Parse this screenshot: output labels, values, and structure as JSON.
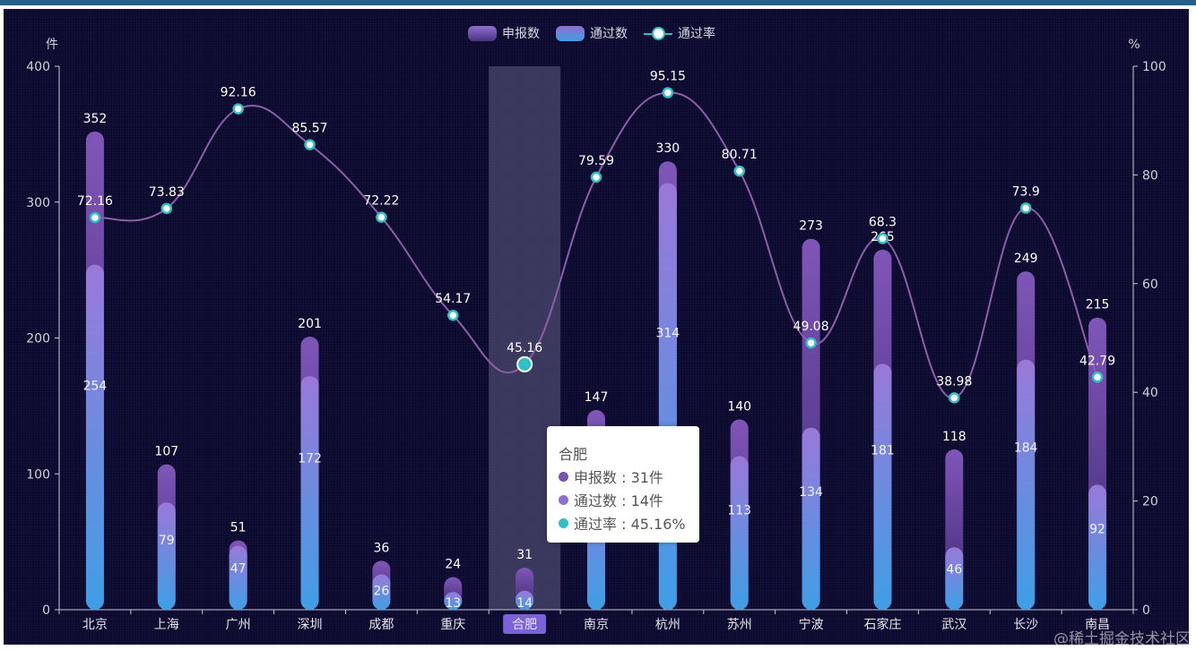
{
  "chart_data": {
    "type": "bar",
    "categories": [
      "北京",
      "上海",
      "广州",
      "深圳",
      "成都",
      "重庆",
      "合肥",
      "南京",
      "杭州",
      "苏州",
      "宁波",
      "石家庄",
      "武汉",
      "长沙",
      "南昌"
    ],
    "series": [
      {
        "name": "申报数",
        "values": [
          352,
          107,
          51,
          201,
          36,
          24,
          31,
          147,
          330,
          140,
          273,
          265,
          118,
          249,
          215
        ]
      },
      {
        "name": "通过数",
        "values": [
          254,
          79,
          47,
          172,
          26,
          13,
          14,
          117,
          314,
          113,
          134,
          181,
          46,
          184,
          92
        ]
      },
      {
        "name": "通过率",
        "values": [
          72.16,
          73.83,
          92.16,
          85.57,
          72.22,
          54.17,
          45.16,
          79.59,
          95.15,
          80.71,
          49.08,
          68.3,
          38.98,
          73.9,
          42.79
        ]
      }
    ],
    "y_left": {
      "unit": "件",
      "ticks": [
        "0",
        "100",
        "200",
        "300",
        "400"
      ],
      "range": [
        0,
        400
      ]
    },
    "y_right": {
      "unit": "%",
      "ticks": [
        "0",
        "20",
        "40",
        "60",
        "80",
        "100"
      ],
      "range": [
        0,
        100
      ]
    },
    "highlighted_category": "合肥",
    "legend_position": "top-center",
    "colors": {
      "submitted": "#7a52b0",
      "passed_top": "#9a78d8",
      "passed_bottom": "#3f9ee6",
      "rate_line": "#8a5fa8",
      "rate_point": "#2fbfc4"
    }
  },
  "legend": [
    {
      "label": "申报数",
      "icon": "bar-swatch-purple"
    },
    {
      "label": "通过数",
      "icon": "bar-swatch-blue"
    },
    {
      "label": "通过率",
      "icon": "line-marker"
    }
  ],
  "tooltip": {
    "title": "合肥",
    "rows": [
      {
        "label": "申报数 : 31件",
        "color": "#7a52b0"
      },
      {
        "label": "通过数 : 14件",
        "color": "#8f6fd0"
      },
      {
        "label": "通过率 : 45.16%",
        "color": "#2fbfc4"
      }
    ]
  },
  "watermark": "@稀土掘金技术社区"
}
